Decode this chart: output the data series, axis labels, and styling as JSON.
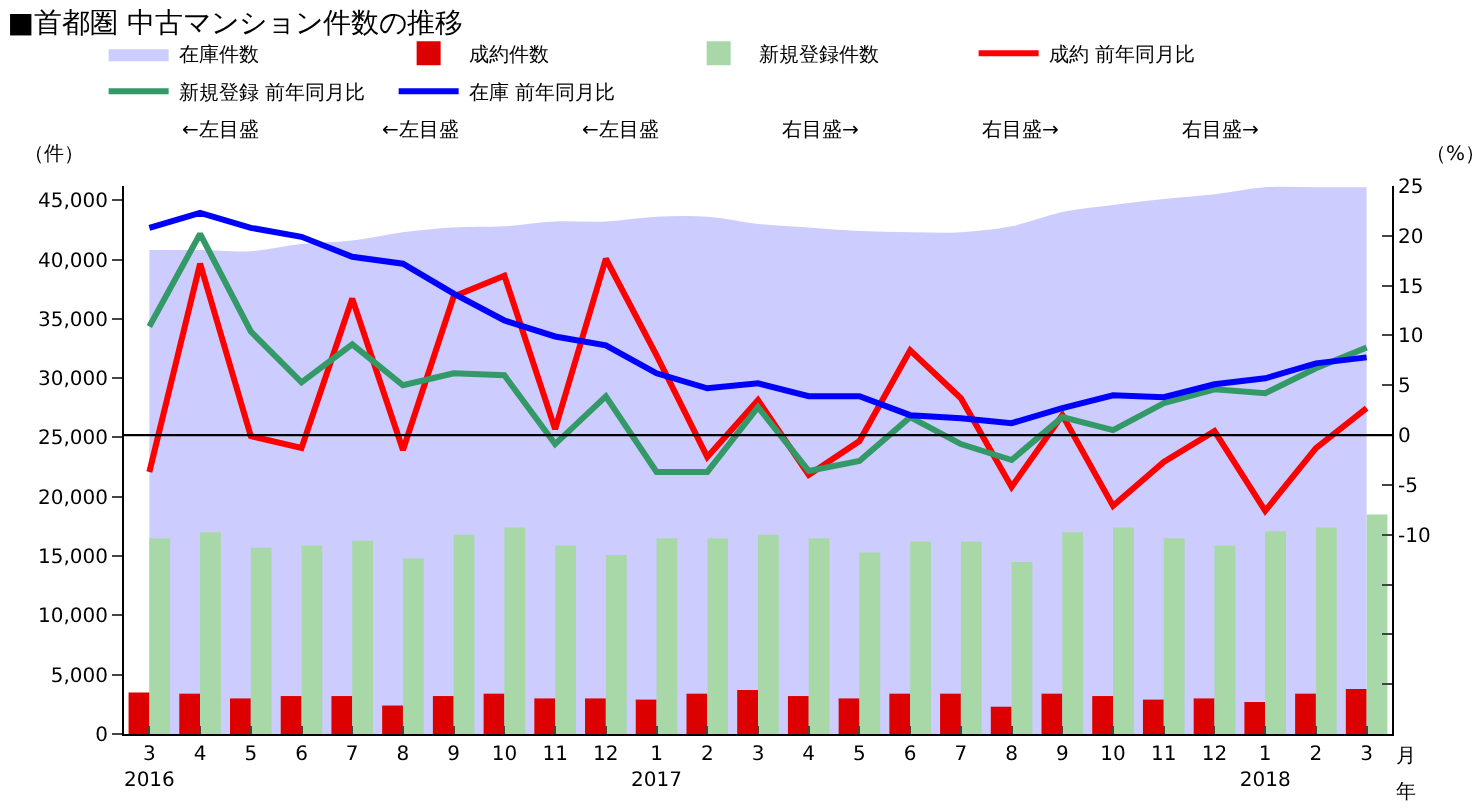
{
  "chart_data": {
    "type": "bar",
    "title": "■首都圏 中古マンション件数の推移",
    "categories": [
      "3\n2016",
      "4",
      "5",
      "6",
      "7",
      "8",
      "9",
      "10",
      "11",
      "12",
      "1\n2017",
      "2",
      "3",
      "4",
      "5",
      "6",
      "7",
      "8",
      "9",
      "10",
      "11",
      "12",
      "1\n2018",
      "2",
      "3"
    ],
    "series": [
      {
        "name": "在庫件数",
        "type": "area",
        "color": "#ccccff",
        "values": [
          40800,
          40800,
          40700,
          41300,
          41600,
          42300,
          42700,
          42800,
          43200,
          43200,
          43600,
          43600,
          43000,
          42700,
          42400,
          42300,
          42300,
          42800,
          44000,
          44600,
          45100,
          45500,
          46100,
          46100,
          46100
        ]
      },
      {
        "name": "成約件数",
        "color": "#dd0000",
        "values": [
          3500,
          3400,
          3000,
          3200,
          3200,
          2400,
          3200,
          3400,
          3000,
          3000,
          2900,
          3400,
          3700,
          3200,
          3000,
          3400,
          3400,
          2300,
          3400,
          3200,
          2900,
          3000,
          2700,
          3400,
          3800
        ]
      },
      {
        "name": "新規登録件数",
        "color": "#a8d8a8",
        "values": [
          16500,
          17000,
          15700,
          15900,
          16300,
          14800,
          16800,
          17400,
          15900,
          15100,
          16500,
          16500,
          16800,
          16500,
          15300,
          16200,
          16200,
          14500,
          17000,
          17400,
          16500,
          15900,
          17100,
          17400,
          18500
        ]
      },
      {
        "name": "成約 前年同月比",
        "type": "line",
        "axis": "y2",
        "color": "#ff0000",
        "values": [
          -3.7,
          17.2,
          -0.1,
          -1.3,
          13.7,
          -1.5,
          13.9,
          16.0,
          0.6,
          17.7,
          8.0,
          -2.2,
          3.5,
          -4.0,
          -0.6,
          8.5,
          3.7,
          -5.2,
          2.0,
          -7.1,
          -2.7,
          0.4,
          -7.6,
          -1.3,
          2.7
        ]
      },
      {
        "name": "新規登録 前年同月比",
        "type": "line",
        "axis": "y2",
        "color": "#339966",
        "values": [
          10.9,
          20.2,
          10.4,
          5.3,
          9.1,
          5.0,
          6.2,
          6.0,
          -0.9,
          3.9,
          -3.7,
          -3.7,
          2.8,
          -3.6,
          -2.6,
          1.8,
          -0.9,
          -2.5,
          1.8,
          0.5,
          3.2,
          4.6,
          4.2,
          6.7,
          8.8
        ]
      },
      {
        "name": "在庫 前年同月比",
        "type": "line",
        "axis": "y2",
        "color": "#0000ff",
        "values": [
          20.8,
          22.3,
          20.8,
          19.9,
          17.9,
          17.2,
          14.2,
          11.5,
          9.9,
          9.0,
          6.2,
          4.7,
          5.2,
          3.9,
          3.9,
          2.0,
          1.7,
          1.2,
          2.7,
          4.0,
          3.8,
          5.1,
          5.7,
          7.2,
          7.8
        ]
      }
    ],
    "annotations": [
      "←左目盛",
      "←左目盛",
      "←左目盛",
      "右目盛→",
      "右目盛→",
      "右目盛→",
      "年"
    ],
    "ylim": [
      0,
      46200
    ],
    "yticks": [
      {
        "value": 0,
        "label": "0"
      },
      {
        "value": 5000,
        "label": "5,000"
      },
      {
        "value": 10000,
        "label": "10,000"
      },
      {
        "value": 15000,
        "label": "15,000"
      },
      {
        "value": 20000,
        "label": "20,000"
      },
      {
        "value": 25000,
        "label": "25,000"
      },
      {
        "value": 30000,
        "label": "30,000"
      },
      {
        "value": 35000,
        "label": "35,000"
      },
      {
        "value": 40000,
        "label": "40,000"
      },
      {
        "value": 45000,
        "label": "45,000"
      }
    ],
    "y2lim": [
      -30,
      25
    ],
    "y2ticks": [
      {
        "value": -30,
        "label": null
      },
      {
        "value": -25,
        "label": null
      },
      {
        "value": -20,
        "label": null
      },
      {
        "value": -15,
        "label": null
      },
      -10,
      -5,
      0,
      5,
      10,
      15,
      20,
      25
    ],
    "ylabel": "（件）",
    "y2label": "（%）",
    "xlabel": "月",
    "ref_lines": [
      {
        "axis": "y2",
        "value": 0,
        "color": "#000000"
      }
    ],
    "grid": false,
    "legend": "top"
  }
}
